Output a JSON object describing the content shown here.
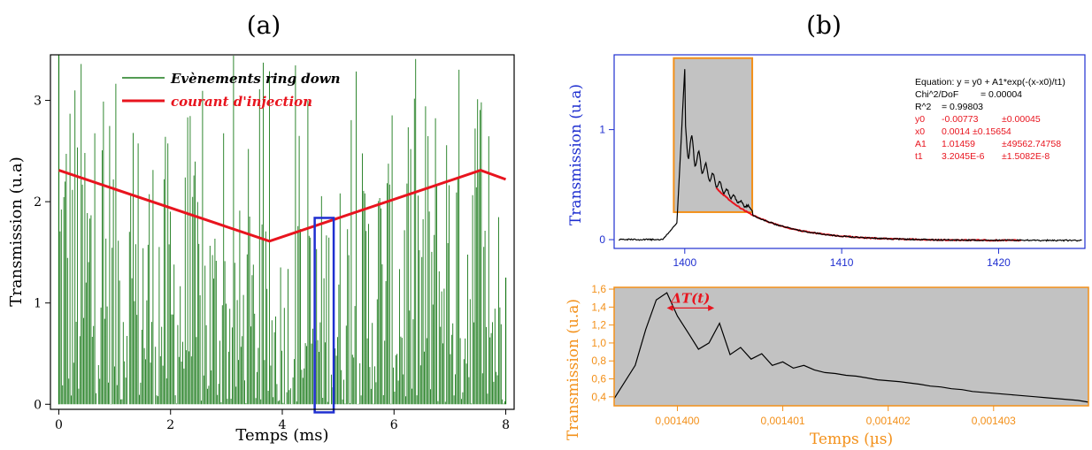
{
  "chart_data": [
    {
      "panel": "(a)",
      "type": "line",
      "xlabel": "Temps (ms)",
      "ylabel": "Transmission (u.a)",
      "xlim": [
        -0.15,
        8.15
      ],
      "ylim": [
        -0.05,
        3.45
      ],
      "xticks": [
        0,
        2,
        4,
        6,
        8
      ],
      "yticks": [
        0,
        1,
        2,
        3
      ],
      "legend_position": "top-center",
      "series": [
        {
          "name": "Evènements ring down",
          "color": "#1a7a1a",
          "kind": "dense-spikes",
          "x_range": [
            0,
            8
          ],
          "baseline": 0.0,
          "peak_max": 3.45
        },
        {
          "name": "courant d'injection",
          "color": "#e8141e",
          "x": [
            0,
            3.77,
            7.55,
            8.0
          ],
          "y": [
            2.31,
            1.61,
            2.31,
            2.22
          ]
        }
      ],
      "highlight_box": {
        "color": "#1f2fd0",
        "x": [
          4.58,
          4.92
        ],
        "y": [
          -0.08,
          1.84
        ]
      }
    },
    {
      "panel": "(b)",
      "type": "line",
      "ylabel": "Transmission (u.a)",
      "xlim": [
        1395.5,
        1425.5
      ],
      "ylim": [
        -0.08,
        1.68
      ],
      "xticks": [
        1400,
        1410,
        1420
      ],
      "yticks": [
        0,
        1
      ],
      "axis_color": "#1f2fd0",
      "series": [
        {
          "name": "data",
          "color": "#000000"
        },
        {
          "name": "fit",
          "color": "#e8141e"
        }
      ],
      "highlight_box": {
        "color": "#f39019",
        "fill": "#c2c2c2",
        "x": [
          1399.3,
          1404.3
        ],
        "y": [
          0.25,
          1.65
        ]
      },
      "fit": {
        "y0": -0.00773,
        "x0": 1399.6,
        "A1": 1.01459,
        "t1_display_units": 3.2045
      },
      "annotation": {
        "equation": "Equation: y = y0 + A1*exp(-(x-x0)/t1)",
        "chi": [
          "Chi^2/DoF",
          "= 0.00004"
        ],
        "r2": [
          "R^2",
          "= 0.99803"
        ],
        "params": [
          {
            "name": "y0",
            "value": "-0.00773",
            "error": "±0.00045"
          },
          {
            "name": "x0",
            "value": "0.0014 ±0.15654",
            "error": ""
          },
          {
            "name": "A1",
            "value": "1.01459",
            "error": "±49562.74758"
          },
          {
            "name": "t1",
            "value": "3.2045E-6",
            "error": "±1.5082E-8"
          }
        ]
      }
    },
    {
      "panel": "(b) zoom",
      "type": "line",
      "xlabel": "Temps (µs)",
      "ylabel": "Transmission (u.a)",
      "xlim": [
        0.0013994,
        0.0014039
      ],
      "ylim": [
        0.3,
        1.62
      ],
      "xticks": [
        "0,001400",
        "0,001401",
        "0,001402",
        "0,001403"
      ],
      "xtick_values": [
        0.0014,
        0.001401,
        0.001402,
        0.001403
      ],
      "yticks": [
        "0,4",
        "0,6",
        "0,8",
        "1,0",
        "1,2",
        "1,4",
        "1,6"
      ],
      "ytick_values": [
        0.4,
        0.6,
        0.8,
        1.0,
        1.2,
        1.4,
        1.6
      ],
      "axis_color": "#f39019",
      "background": "#c2c2c2",
      "series": [
        {
          "name": "zoom",
          "color": "#000000",
          "x": [
            0.0013994,
            0.0013996,
            0.0013997,
            0.0013998,
            0.0013999,
            0.0014,
            0.00140012,
            0.0014002,
            0.0014003,
            0.0014004,
            0.0014005,
            0.0014006,
            0.0014007,
            0.0014008,
            0.0014009,
            0.001401,
            0.0014011,
            0.0014012,
            0.0014013,
            0.0014014,
            0.0014015,
            0.0014016,
            0.0014017,
            0.0014018,
            0.0014019,
            0.001402,
            0.0014021,
            0.0014022,
            0.0014023,
            0.0014024,
            0.0014025,
            0.0014026,
            0.0014027,
            0.0014028,
            0.0014029,
            0.001403,
            0.0014031,
            0.0014032,
            0.0014033,
            0.0014034,
            0.0014035,
            0.0014036,
            0.0014037,
            0.0014038,
            0.0014039
          ],
          "y": [
            0.38,
            0.75,
            1.15,
            1.48,
            1.56,
            1.3,
            1.08,
            0.93,
            1.0,
            1.22,
            0.87,
            0.95,
            0.82,
            0.88,
            0.75,
            0.79,
            0.72,
            0.75,
            0.7,
            0.67,
            0.66,
            0.64,
            0.63,
            0.61,
            0.59,
            0.58,
            0.57,
            0.555,
            0.54,
            0.52,
            0.51,
            0.49,
            0.48,
            0.46,
            0.45,
            0.44,
            0.43,
            0.42,
            0.41,
            0.4,
            0.39,
            0.38,
            0.37,
            0.36,
            0.34
          ]
        }
      ],
      "annotation": {
        "label": "ΔT(t)",
        "color": "#e8141e",
        "x_from": 0.0013999,
        "x_to": 0.00140035,
        "y": 1.39
      }
    }
  ],
  "labels": {
    "panel_a": "(a)",
    "panel_b": "(b)"
  }
}
